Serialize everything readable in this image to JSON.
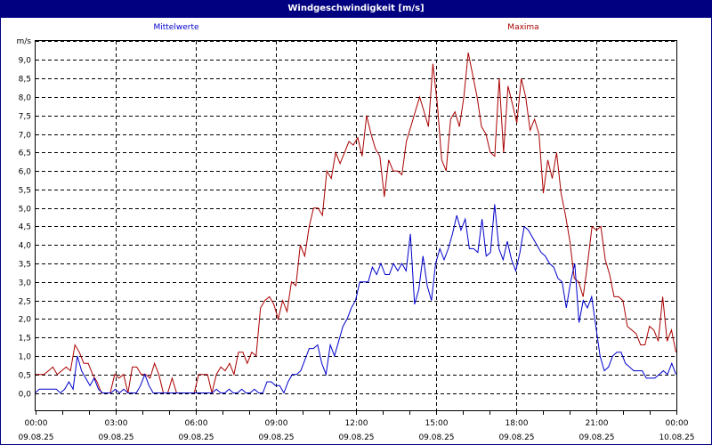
{
  "window": {
    "title": "Windgeschwindigkeit [m/s]",
    "title_bg": "#000080",
    "title_fg": "#ffffff"
  },
  "legend": {
    "mean_label": "Mittelwerte",
    "max_label": "Maxima",
    "mean_color": "#0000cc",
    "max_color": "#aa0000"
  },
  "chart_data": {
    "type": "line",
    "title": "Windgeschwindigkeit [m/s]",
    "xlabel": "",
    "ylabel": "m/s",
    "ylim": [
      -0.5,
      9.5
    ],
    "grid": true,
    "legend_position": "top",
    "y_ticks": [
      "0,0",
      "0,5",
      "1,0",
      "1,5",
      "2,0",
      "2,5",
      "3,0",
      "3,5",
      "4,0",
      "4,5",
      "5,0",
      "5,5",
      "6,0",
      "6,5",
      "7,0",
      "7,5",
      "8,0",
      "8,5",
      "9,0"
    ],
    "y_unit_label": "m/s",
    "x_ticks": [
      {
        "time": "00:00",
        "date": "09.08.25"
      },
      {
        "time": "03:00",
        "date": "09.08.25"
      },
      {
        "time": "06:00",
        "date": "09.08.25"
      },
      {
        "time": "09:00",
        "date": "09.08.25"
      },
      {
        "time": "12:00",
        "date": "09.08.25"
      },
      {
        "time": "15:00",
        "date": "09.08.25"
      },
      {
        "time": "18:00",
        "date": "09.08.25"
      },
      {
        "time": "21:00",
        "date": "09.08.25"
      },
      {
        "time": "00:00",
        "date": "10.08.25"
      }
    ],
    "x_interval_minutes": 10,
    "x_start": "09.08.25 00:00",
    "series": [
      {
        "name": "Mittelwerte",
        "color": "#0000cc",
        "values": [
          0.0,
          0.1,
          0.1,
          0.1,
          0.1,
          0.1,
          0.0,
          0.1,
          0.3,
          0.1,
          1.0,
          0.6,
          0.4,
          0.2,
          0.4,
          0.1,
          0.0,
          0.0,
          0.0,
          0.1,
          0.0,
          0.1,
          0.0,
          0.0,
          0.0,
          0.2,
          0.5,
          0.2,
          0.0,
          0.0,
          0.0,
          0.0,
          0.0,
          0.0,
          0.0,
          0.0,
          0.0,
          0.0,
          0.0,
          0.0,
          0.0,
          0.0,
          0.0,
          0.1,
          0.0,
          0.0,
          0.1,
          0.0,
          0.0,
          0.1,
          0.0,
          0.0,
          0.1,
          0.0,
          0.0,
          0.3,
          0.3,
          0.2,
          0.2,
          0.0,
          0.3,
          0.5,
          0.5,
          0.6,
          0.9,
          1.2,
          1.2,
          1.3,
          0.8,
          0.5,
          1.3,
          1.0,
          1.4,
          1.8,
          2.0,
          2.3,
          2.5,
          3.0,
          3.0,
          3.0,
          3.4,
          3.2,
          3.5,
          3.2,
          3.2,
          3.5,
          3.3,
          3.5,
          3.3,
          4.3,
          2.4,
          2.8,
          3.7,
          2.9,
          2.5,
          3.5,
          3.9,
          3.6,
          3.9,
          4.3,
          4.8,
          4.4,
          4.7,
          3.9,
          3.9,
          3.8,
          4.7,
          3.7,
          3.8,
          5.1,
          3.9,
          3.6,
          4.1,
          3.6,
          3.3,
          3.8,
          4.5,
          4.4,
          4.2,
          4.0,
          3.8,
          3.7,
          3.5,
          3.4,
          3.1,
          3.0,
          2.3,
          3.0,
          3.5,
          1.9,
          2.5,
          2.3,
          2.6,
          1.8,
          1.0,
          0.6,
          0.7,
          1.0,
          1.1,
          1.1,
          0.8,
          0.7,
          0.6,
          0.6,
          0.6,
          0.4,
          0.4,
          0.4,
          0.5,
          0.6,
          0.5,
          0.8,
          0.5
        ]
      },
      {
        "name": "Maxima",
        "color": "#aa0000",
        "values": [
          0.5,
          0.5,
          0.5,
          0.6,
          0.7,
          0.5,
          0.6,
          0.7,
          0.6,
          1.3,
          1.1,
          0.8,
          0.8,
          0.5,
          0.3,
          0.0,
          0.0,
          0.0,
          0.5,
          0.4,
          0.5,
          0.0,
          0.7,
          0.7,
          0.5,
          0.5,
          0.4,
          0.8,
          0.5,
          0.0,
          0.0,
          0.4,
          0.0,
          0.0,
          0.0,
          0.0,
          0.0,
          0.5,
          0.5,
          0.5,
          0.0,
          0.5,
          0.7,
          0.6,
          0.8,
          0.5,
          1.1,
          1.1,
          0.8,
          1.1,
          1.0,
          2.3,
          2.5,
          2.6,
          2.4,
          2.0,
          2.5,
          2.2,
          3.0,
          2.9,
          4.0,
          3.7,
          4.5,
          5.0,
          5.0,
          4.8,
          6.0,
          5.8,
          6.5,
          6.2,
          6.5,
          6.8,
          6.7,
          6.9,
          6.4,
          7.5,
          7.0,
          6.6,
          6.4,
          5.3,
          6.3,
          6.0,
          6.0,
          5.9,
          6.8,
          7.2,
          7.6,
          8.0,
          7.6,
          7.2,
          8.9,
          7.8,
          6.3,
          6.0,
          7.4,
          7.6,
          7.2,
          8.0,
          9.2,
          8.6,
          8.0,
          7.2,
          7.0,
          6.5,
          6.4,
          8.5,
          6.5,
          8.3,
          7.8,
          7.3,
          8.5,
          8.0,
          7.1,
          7.4,
          7.0,
          5.4,
          6.3,
          5.8,
          6.5,
          5.4,
          4.8,
          4.1,
          3.1,
          3.0,
          2.6,
          3.5,
          4.5,
          4.4,
          4.5,
          3.6,
          3.2,
          2.6,
          2.6,
          2.5,
          1.8,
          1.7,
          1.6,
          1.3,
          1.3,
          1.8,
          1.7,
          1.4,
          2.6,
          1.4,
          1.7,
          1.1
        ]
      }
    ]
  }
}
